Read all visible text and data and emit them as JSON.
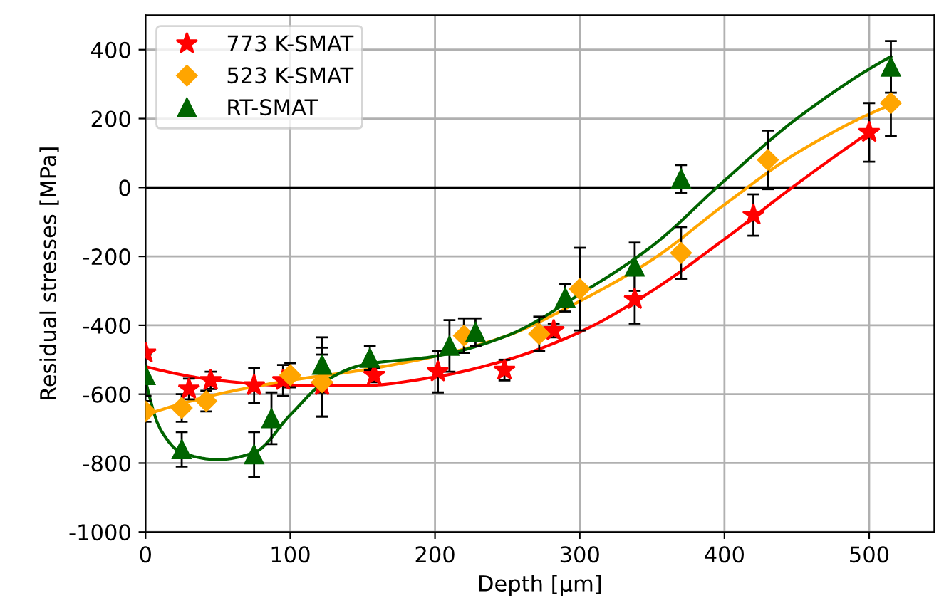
{
  "chart_data": {
    "type": "scatter",
    "xlabel": "Depth [µm]",
    "ylabel": "Residual stresses [MPa]",
    "xlim": [
      0,
      545
    ],
    "ylim": [
      -1000,
      500
    ],
    "xticks": [
      0,
      100,
      200,
      300,
      400,
      500
    ],
    "yticks": [
      -1000,
      -800,
      -600,
      -400,
      -200,
      0,
      200,
      400
    ],
    "grid": true,
    "legend": "top left",
    "ref_lines": [
      {
        "axis": "y",
        "value": 0,
        "color": "#000000"
      }
    ],
    "series": [
      {
        "name": "773 K-SMAT",
        "marker": "star",
        "color": "#ff0000",
        "x": [
          0,
          30,
          45,
          75,
          95,
          122,
          158,
          202,
          248,
          282,
          338,
          420,
          500
        ],
        "values": [
          -480,
          -585,
          -560,
          -575,
          -560,
          -575,
          -545,
          -535,
          -530,
          -415,
          -325,
          -80,
          160
        ],
        "errors": [
          null,
          30,
          25,
          50,
          45,
          90,
          20,
          60,
          30,
          20,
          70,
          60,
          85
        ]
      },
      {
        "name": "523 K-SMAT",
        "marker": "diamond",
        "color": "#ffa500",
        "x": [
          0,
          25,
          42,
          100,
          122,
          220,
          272,
          300,
          370,
          430,
          515
        ],
        "values": [
          -650,
          -640,
          -620,
          -545,
          -565,
          -430,
          -425,
          -295,
          -190,
          80,
          245
        ],
        "errors": [
          30,
          40,
          30,
          35,
          100,
          50,
          50,
          120,
          75,
          85,
          95
        ]
      },
      {
        "name": "RT-SMAT",
        "marker": "triangle",
        "color": "#006400",
        "x": [
          0,
          25,
          75,
          87,
          122,
          155,
          210,
          228,
          290,
          338,
          370,
          515
        ],
        "values": [
          -545,
          -760,
          -775,
          -670,
          -515,
          -495,
          -460,
          -420,
          -320,
          -230,
          25,
          350
        ],
        "errors": [
          60,
          50,
          65,
          75,
          80,
          35,
          75,
          40,
          40,
          70,
          40,
          75
        ]
      },
      {
        "type": "line",
        "color": "#ff0000",
        "x": [
          0,
          50,
          100,
          150,
          200,
          250,
          300,
          350,
          400,
          450,
          500
        ],
        "values": [
          -520,
          -560,
          -575,
          -575,
          -550,
          -500,
          -420,
          -300,
          -150,
          10,
          160
        ]
      },
      {
        "type": "line",
        "color": "#ffa500",
        "x": [
          0,
          50,
          100,
          150,
          200,
          250,
          300,
          350,
          400,
          450,
          515
        ],
        "values": [
          -660,
          -600,
          -560,
          -530,
          -490,
          -430,
          -330,
          -210,
          -50,
          100,
          240
        ]
      },
      {
        "type": "line",
        "color": "#006400",
        "x": [
          0,
          10,
          25,
          50,
          75,
          100,
          125,
          150,
          200,
          250,
          300,
          350,
          400,
          450,
          515
        ],
        "values": [
          -560,
          -700,
          -770,
          -790,
          -770,
          -660,
          -560,
          -515,
          -490,
          -430,
          -310,
          -170,
          20,
          200,
          380
        ]
      }
    ]
  }
}
